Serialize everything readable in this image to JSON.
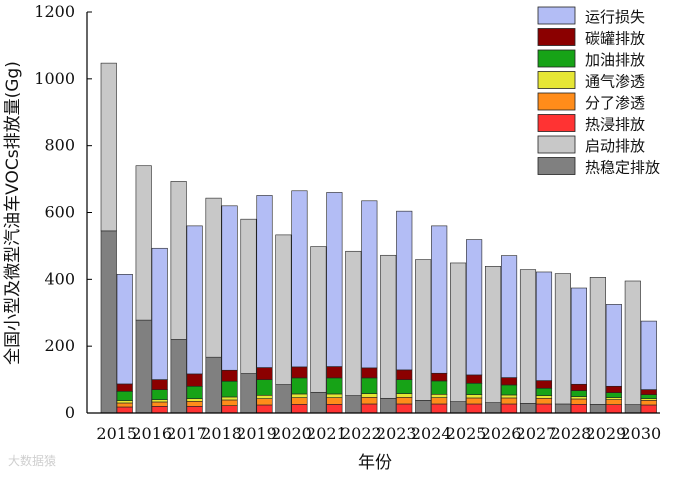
{
  "chart_data": {
    "type": "bar",
    "stacked": true,
    "ylabel": "全国小型及微型汽油车VOCs排放量(Gg)",
    "xlabel": "年份",
    "ylim": [
      0,
      1200
    ],
    "yticks": [
      0,
      200,
      400,
      600,
      800,
      1000,
      1200
    ],
    "categories": [
      "2015",
      "2016",
      "2017",
      "2018",
      "2019",
      "2020",
      "2021",
      "2022",
      "2023",
      "2024",
      "2025",
      "2026",
      "2027",
      "2028",
      "2029",
      "2030"
    ],
    "groups": [
      {
        "name": "left",
        "series": [
          {
            "name": "热稳定排放",
            "color": "#808080",
            "values": [
              545,
              278,
              220,
              167,
              118,
              85,
              62,
              52,
              44,
              38,
              34,
              31,
              29,
              27,
              26,
              25
            ]
          },
          {
            "name": "启动排放",
            "color": "#c8c8c8",
            "values": [
              502,
              462,
              473,
              476,
              462,
              448,
              436,
              432,
              428,
              421,
              415,
              408,
              400,
              390,
              380,
              370
            ]
          }
        ]
      },
      {
        "name": "right",
        "series": [
          {
            "name": "热浸排放",
            "color": "#ff3333",
            "values": [
              18,
              20,
              20,
              22,
              24,
              26,
              26,
              27,
              27,
              27,
              27,
              27,
              27,
              26,
              25,
              24
            ]
          },
          {
            "name": "分了渗透",
            "color": "#ff8c1a",
            "values": [
              12,
              13,
              15,
              17,
              19,
              20,
              20,
              20,
              20,
              19,
              18,
              18,
              17,
              16,
              15,
              14
            ]
          },
          {
            "name": "通气渗透",
            "color": "#e6e635",
            "values": [
              7,
              7,
              8,
              9,
              10,
              11,
              11,
              11,
              11,
              10,
              10,
              9,
              8,
              7,
              6,
              5
            ]
          },
          {
            "name": "加油排放",
            "color": "#17a317",
            "values": [
              28,
              30,
              37,
              47,
              47,
              48,
              48,
              47,
              42,
              40,
              34,
              30,
              22,
              18,
              15,
              12
            ]
          },
          {
            "name": "碳罐排放",
            "color": "#8b0000",
            "values": [
              22,
              30,
              37,
              33,
              36,
              33,
              34,
              30,
              29,
              23,
              25,
              22,
              23,
              19,
              19,
              15
            ]
          },
          {
            "name": "运行损失",
            "color": "#b3bdf5",
            "values": [
              328,
              393,
              443,
              492,
              515,
              527,
              521,
              500,
              475,
              441,
              405,
              365,
              325,
              288,
              245,
              205
            ]
          }
        ]
      }
    ],
    "legend": {
      "position": "top-right",
      "entries": [
        {
          "label": "运行损失",
          "color": "#b3bdf5"
        },
        {
          "label": "碳罐排放",
          "color": "#8b0000"
        },
        {
          "label": "加油排放",
          "color": "#17a317"
        },
        {
          "label": "通气渗透",
          "color": "#e6e635"
        },
        {
          "label": "分了渗透",
          "color": "#ff8c1a"
        },
        {
          "label": "热浸排放",
          "color": "#ff3333"
        },
        {
          "label": "启动排放",
          "color": "#c8c8c8"
        },
        {
          "label": "热稳定排放",
          "color": "#808080"
        }
      ]
    }
  },
  "watermark": "大数据猿"
}
